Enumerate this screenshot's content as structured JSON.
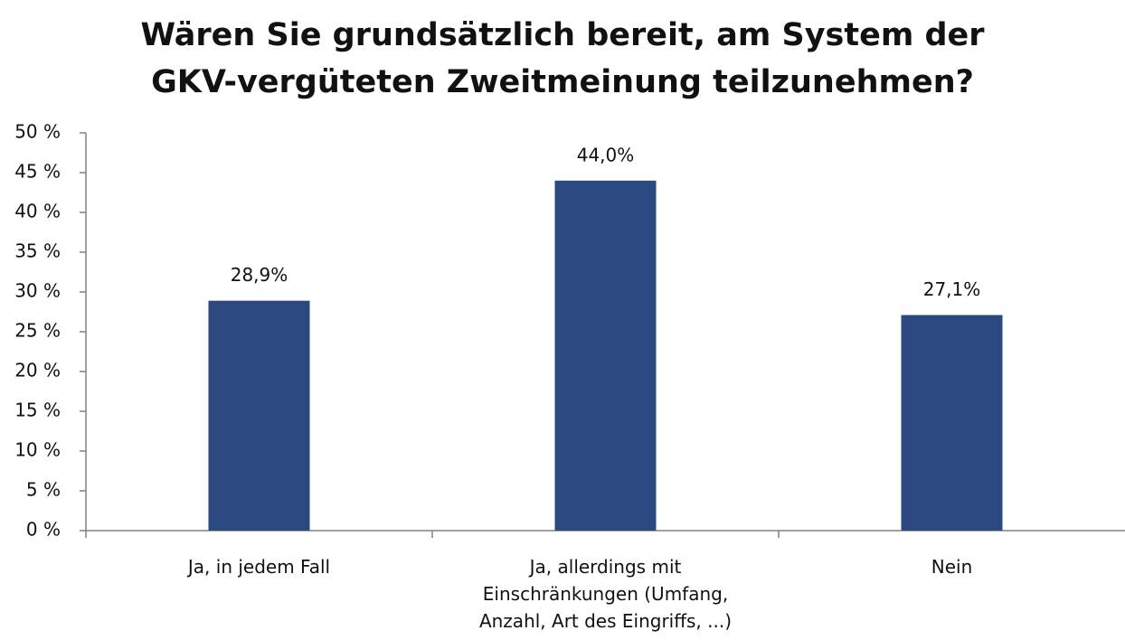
{
  "chart_data": {
    "type": "bar",
    "title": [
      "Wären Sie grundsätzlich bereit, am System der",
      "GKV-vergüteten Zweitmeinung teilzunehmen?"
    ],
    "categories": [
      "Ja, in jedem Fall",
      "Ja, allerdings mit Einschränkungen (Umfang, Anzahl, Art des Eingriffs, ...)",
      "Nein"
    ],
    "values": [
      28.9,
      44.0,
      27.1
    ],
    "value_labels": [
      "28,9%",
      "44,0%",
      "27,1%"
    ],
    "color": "#2b4880",
    "ylim": [
      0,
      50
    ],
    "yticks": [
      {
        "value": 0,
        "label": "0 %"
      },
      {
        "value": 5,
        "label": "5 %"
      },
      {
        "value": 10,
        "label": "10 %"
      },
      {
        "value": 15,
        "label": "15 %"
      },
      {
        "value": 20,
        "label": "20 %"
      },
      {
        "value": 25,
        "label": "25 %"
      },
      {
        "value": 30,
        "label": "30 %"
      },
      {
        "value": 35,
        "label": "35 %"
      },
      {
        "value": 40,
        "label": "40 %"
      },
      {
        "value": 45,
        "label": "45 %"
      },
      {
        "value": 50,
        "label": "50 %"
      }
    ],
    "grid": false
  }
}
